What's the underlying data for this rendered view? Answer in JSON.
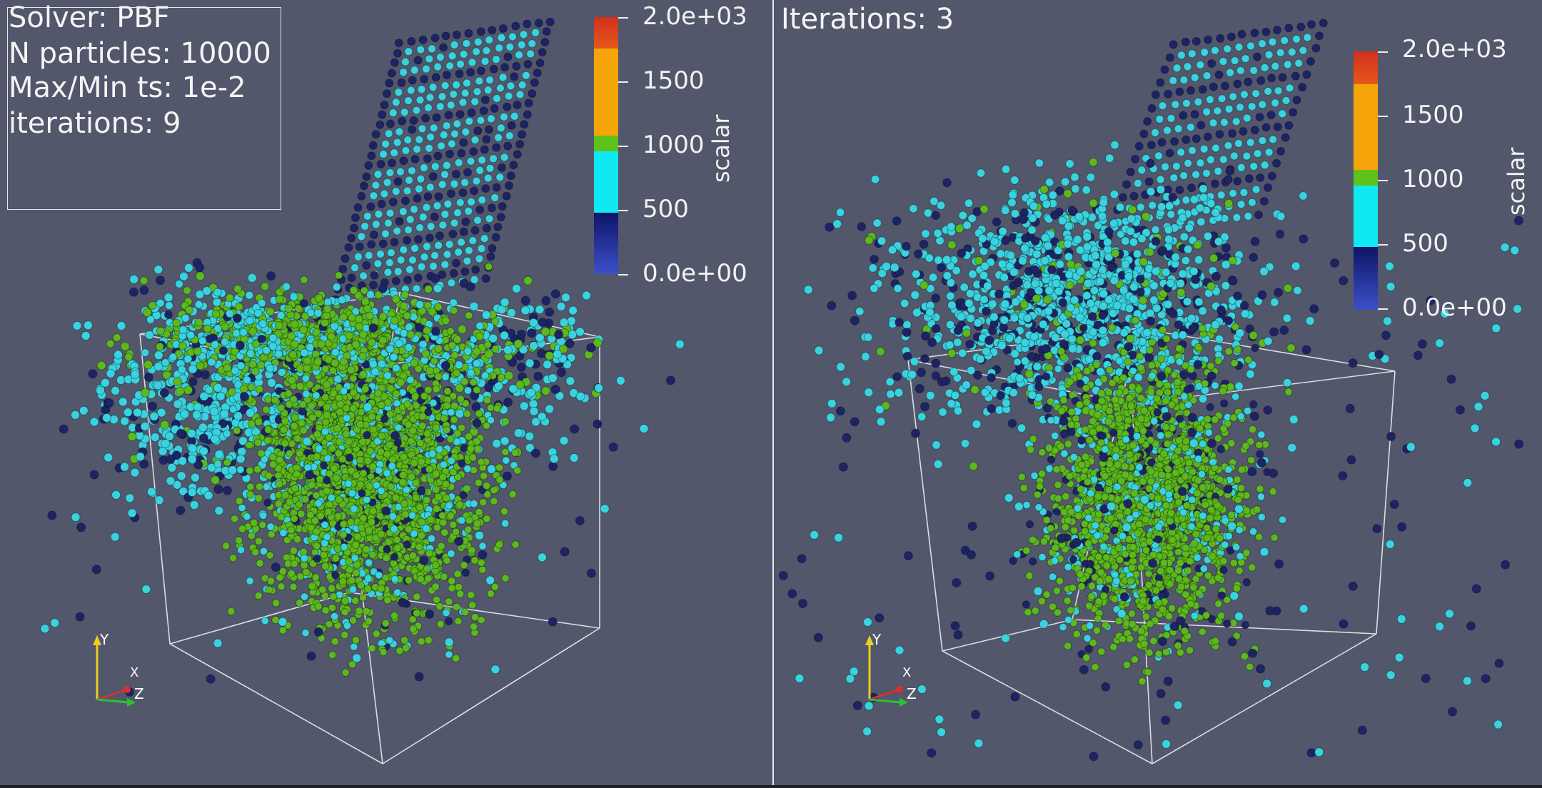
{
  "left_view": {
    "info_lines": [
      "Solver: PBF",
      "N particles: 10000",
      "Max/Min ts: 1e-2",
      "iterations: 9"
    ],
    "colorbar": {
      "labels": [
        "2.0e+03",
        "1500",
        "1000",
        "500",
        "0.0e+00"
      ],
      "title": "scalar"
    },
    "axes": {
      "y": "Y",
      "x": "X",
      "z": "Z"
    }
  },
  "right_view": {
    "title": "Iterations: 3",
    "colorbar": {
      "labels": [
        "2.0e+03",
        "1500",
        "1000",
        "500",
        "0.0e+00"
      ],
      "title": "scalar"
    },
    "axes": {
      "y": "Y",
      "x": "X",
      "z": "Z"
    }
  },
  "colors": {
    "background": "#52576b",
    "particle_green": "#5cb81e",
    "particle_cyan": "#3ad2df",
    "particle_dark": "#1d2466",
    "colorbar_red": "#d8381e",
    "colorbar_orange": "#f5a50a",
    "colorbar_green": "#5ec21a",
    "colorbar_cyan": "#10e8f2",
    "colorbar_dark": "#121a6e",
    "colorbar_blue": "#3b50c8"
  }
}
